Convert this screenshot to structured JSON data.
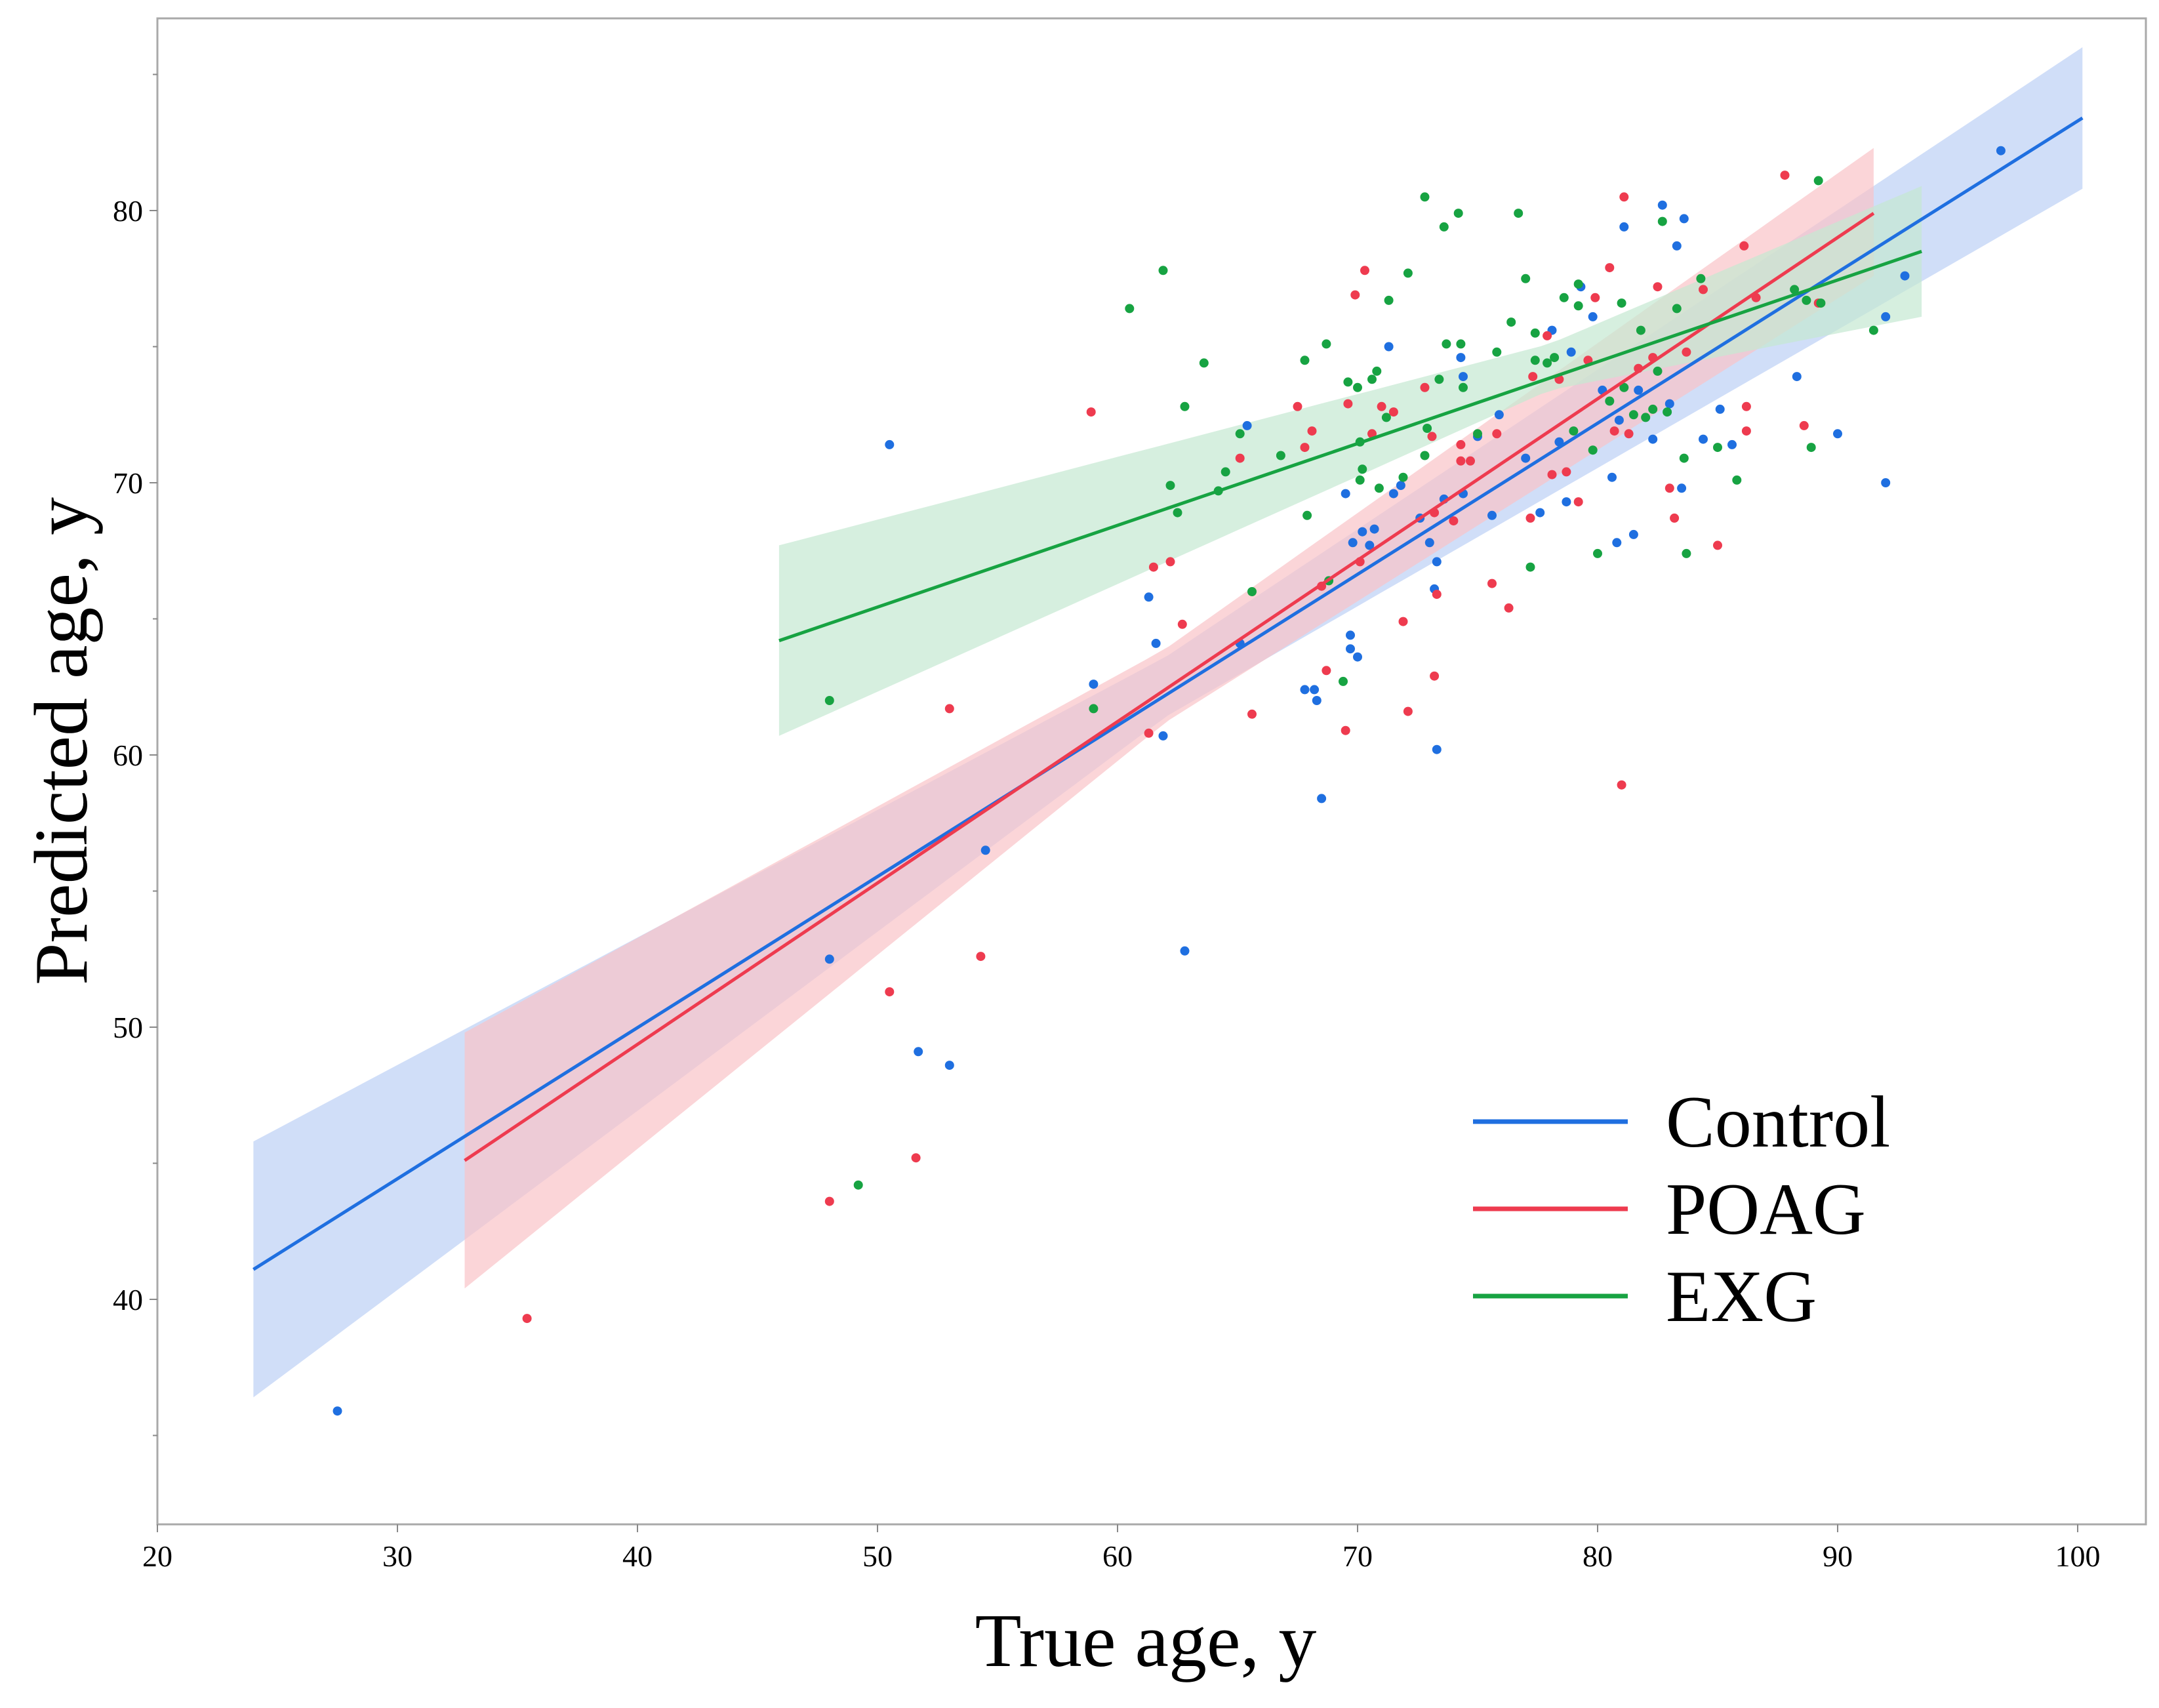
{
  "chart_data": {
    "type": "scatter",
    "xlabel": "True age, y",
    "ylabel": "Predicted age, y",
    "xlim": [
      20,
      102
    ],
    "ylim": [
      32,
      88
    ],
    "xticks": [
      20,
      30,
      40,
      50,
      60,
      70,
      80,
      90,
      100
    ],
    "yticks": [
      40,
      50,
      60,
      70,
      80
    ],
    "yminor": [
      35,
      45,
      55,
      65,
      75,
      85
    ],
    "legend_position": "bottom-right",
    "series": [
      {
        "name": "Control",
        "color": "#1f6fe0",
        "band_color": "#bcd0f5",
        "fit": {
          "x": [
            24,
            100.2
          ],
          "y": [
            41.1,
            83.4
          ]
        },
        "band": {
          "x": [
            24,
            62,
            100.2
          ],
          "lower": [
            36.4,
            61.4,
            80.8
          ],
          "upper": [
            45.8,
            63.6,
            86.0
          ]
        },
        "points": [
          [
            27.5,
            35.9
          ],
          [
            48,
            52.5
          ],
          [
            50.5,
            71.4
          ],
          [
            51.7,
            49.1
          ],
          [
            53,
            48.6
          ],
          [
            54.5,
            56.5
          ],
          [
            59,
            62.6
          ],
          [
            61.3,
            65.8
          ],
          [
            61.6,
            64.1
          ],
          [
            61.9,
            60.7
          ],
          [
            62.8,
            52.8
          ],
          [
            65.1,
            64.1
          ],
          [
            65.4,
            72.1
          ],
          [
            67.8,
            62.4
          ],
          [
            68.2,
            62.4
          ],
          [
            68.3,
            62.0
          ],
          [
            68.5,
            58.4
          ],
          [
            69.5,
            69.6
          ],
          [
            69.7,
            64.4
          ],
          [
            69.7,
            63.9
          ],
          [
            69.8,
            67.8
          ],
          [
            70,
            63.6
          ],
          [
            70.2,
            68.2
          ],
          [
            70.5,
            67.7
          ],
          [
            70.7,
            68.3
          ],
          [
            71.3,
            75.0
          ],
          [
            71.5,
            69.6
          ],
          [
            71.8,
            69.9
          ],
          [
            72.6,
            68.7
          ],
          [
            73,
            67.8
          ],
          [
            73.2,
            66.1
          ],
          [
            73.3,
            67.1
          ],
          [
            73.3,
            60.2
          ],
          [
            73.6,
            69.4
          ],
          [
            74.3,
            74.6
          ],
          [
            74.4,
            73.9
          ],
          [
            74.4,
            69.6
          ],
          [
            75,
            71.7
          ],
          [
            75.6,
            68.8
          ],
          [
            75.9,
            72.5
          ],
          [
            77,
            70.9
          ],
          [
            77.6,
            68.9
          ],
          [
            78.1,
            75.6
          ],
          [
            78.4,
            71.5
          ],
          [
            78.7,
            69.3
          ],
          [
            78.9,
            74.8
          ],
          [
            79.3,
            77.2
          ],
          [
            79.8,
            76.1
          ],
          [
            80.2,
            73.4
          ],
          [
            80.6,
            70.2
          ],
          [
            80.8,
            67.8
          ],
          [
            80.9,
            72.3
          ],
          [
            81.1,
            79.4
          ],
          [
            81.5,
            68.1
          ],
          [
            81.7,
            73.4
          ],
          [
            82.3,
            71.6
          ],
          [
            82.7,
            80.2
          ],
          [
            83,
            72.9
          ],
          [
            83.3,
            78.7
          ],
          [
            83.5,
            69.8
          ],
          [
            83.6,
            79.7
          ],
          [
            84.4,
            71.6
          ],
          [
            85.1,
            72.7
          ],
          [
            85.6,
            71.4
          ],
          [
            88.3,
            73.9
          ],
          [
            90,
            71.8
          ],
          [
            92,
            70.0
          ],
          [
            92,
            76.1
          ],
          [
            92.8,
            77.6
          ],
          [
            96.8,
            82.2
          ]
        ]
      },
      {
        "name": "POAG",
        "color": "#ee3b4f",
        "band_color": "#f9c3c8",
        "fit": {
          "x": [
            32.8,
            91.5
          ],
          "y": [
            45.1,
            79.9
          ]
        },
        "band": {
          "x": [
            32.8,
            62,
            91.5
          ],
          "lower": [
            40.4,
            61.2,
            77.6
          ],
          "upper": [
            49.8,
            63.9,
            82.3
          ]
        },
        "points": [
          [
            35.4,
            39.3
          ],
          [
            48,
            43.6
          ],
          [
            50.5,
            51.3
          ],
          [
            51.6,
            45.2
          ],
          [
            53,
            61.7
          ],
          [
            54.3,
            52.6
          ],
          [
            58.9,
            72.6
          ],
          [
            61.3,
            60.8
          ],
          [
            61.5,
            66.9
          ],
          [
            62.2,
            67.1
          ],
          [
            62.7,
            64.8
          ],
          [
            65.1,
            70.9
          ],
          [
            65.6,
            61.5
          ],
          [
            67.5,
            72.8
          ],
          [
            67.8,
            71.3
          ],
          [
            68.1,
            71.9
          ],
          [
            68.5,
            66.2
          ],
          [
            68.7,
            63.1
          ],
          [
            69.5,
            60.9
          ],
          [
            69.6,
            72.9
          ],
          [
            69.9,
            76.9
          ],
          [
            70.1,
            67.1
          ],
          [
            70.3,
            77.8
          ],
          [
            70.6,
            71.8
          ],
          [
            71,
            72.8
          ],
          [
            71.5,
            72.6
          ],
          [
            71.9,
            64.9
          ],
          [
            72.1,
            61.6
          ],
          [
            72.8,
            73.5
          ],
          [
            73.1,
            71.7
          ],
          [
            73.2,
            68.9
          ],
          [
            73.2,
            62.9
          ],
          [
            73.3,
            65.9
          ],
          [
            74,
            68.6
          ],
          [
            74.3,
            70.8
          ],
          [
            74.3,
            71.4
          ],
          [
            74.7,
            70.8
          ],
          [
            75.6,
            66.3
          ],
          [
            75.8,
            71.8
          ],
          [
            76.3,
            65.4
          ],
          [
            77.2,
            68.7
          ],
          [
            77.3,
            73.9
          ],
          [
            77.9,
            75.4
          ],
          [
            78.1,
            70.3
          ],
          [
            78.4,
            73.8
          ],
          [
            78.7,
            70.4
          ],
          [
            79.2,
            69.3
          ],
          [
            79.6,
            74.5
          ],
          [
            79.9,
            76.8
          ],
          [
            80.5,
            77.9
          ],
          [
            80.7,
            71.9
          ],
          [
            81,
            58.9
          ],
          [
            81.1,
            80.5
          ],
          [
            81.3,
            71.8
          ],
          [
            81.7,
            74.2
          ],
          [
            82.3,
            74.6
          ],
          [
            82.5,
            77.2
          ],
          [
            83,
            69.8
          ],
          [
            83.2,
            68.7
          ],
          [
            83.7,
            74.8
          ],
          [
            84.4,
            77.1
          ],
          [
            85,
            67.7
          ],
          [
            86.1,
            78.7
          ],
          [
            86.2,
            71.9
          ],
          [
            86.2,
            72.8
          ],
          [
            86.6,
            76.8
          ],
          [
            87.8,
            81.3
          ],
          [
            88.6,
            72.1
          ],
          [
            89.2,
            76.6
          ]
        ]
      },
      {
        "name": "EXG",
        "color": "#17a342",
        "band_color": "#c5e8d2",
        "fit": {
          "x": [
            45.9,
            93.5
          ],
          "y": [
            64.2,
            78.5
          ]
        },
        "band": {
          "x": [
            45.9,
            78,
            93.5
          ],
          "lower": [
            60.7,
            73.4,
            76.1
          ],
          "upper": [
            67.7,
            75.1,
            80.9
          ]
        },
        "points": [
          [
            48,
            62.0
          ],
          [
            49.2,
            44.2
          ],
          [
            59,
            61.7
          ],
          [
            60.5,
            76.4
          ],
          [
            61.9,
            77.8
          ],
          [
            62.2,
            69.9
          ],
          [
            62.5,
            68.9
          ],
          [
            62.8,
            72.8
          ],
          [
            63.6,
            74.4
          ],
          [
            64.2,
            69.7
          ],
          [
            64.5,
            70.4
          ],
          [
            65.1,
            71.8
          ],
          [
            65.6,
            66.0
          ],
          [
            66.8,
            71.0
          ],
          [
            67.8,
            74.5
          ],
          [
            67.9,
            68.8
          ],
          [
            68.7,
            75.1
          ],
          [
            68.8,
            66.4
          ],
          [
            69.4,
            62.7
          ],
          [
            69.6,
            73.7
          ],
          [
            70,
            73.5
          ],
          [
            70.1,
            71.5
          ],
          [
            70.1,
            70.1
          ],
          [
            70.2,
            70.5
          ],
          [
            70.6,
            73.8
          ],
          [
            70.8,
            74.1
          ],
          [
            70.9,
            69.8
          ],
          [
            71.2,
            72.4
          ],
          [
            71.3,
            76.7
          ],
          [
            71.9,
            70.2
          ],
          [
            72.1,
            77.7
          ],
          [
            72.8,
            80.5
          ],
          [
            72.8,
            71.0
          ],
          [
            72.9,
            72.0
          ],
          [
            73.4,
            73.8
          ],
          [
            73.6,
            79.4
          ],
          [
            73.7,
            75.1
          ],
          [
            74.2,
            79.9
          ],
          [
            74.3,
            75.1
          ],
          [
            74.4,
            73.5
          ],
          [
            75,
            71.8
          ],
          [
            75.8,
            74.8
          ],
          [
            76.4,
            75.9
          ],
          [
            76.7,
            79.9
          ],
          [
            77,
            77.5
          ],
          [
            77.2,
            66.9
          ],
          [
            77.4,
            74.5
          ],
          [
            77.4,
            75.5
          ],
          [
            77.9,
            74.4
          ],
          [
            78.2,
            74.6
          ],
          [
            78.6,
            76.8
          ],
          [
            79,
            71.9
          ],
          [
            79.2,
            77.3
          ],
          [
            79.2,
            76.5
          ],
          [
            79.8,
            71.2
          ],
          [
            80,
            67.4
          ],
          [
            80.5,
            73.0
          ],
          [
            81,
            76.6
          ],
          [
            81.1,
            73.5
          ],
          [
            81.5,
            72.5
          ],
          [
            81.8,
            75.6
          ],
          [
            82,
            72.4
          ],
          [
            82.3,
            72.7
          ],
          [
            82.5,
            74.1
          ],
          [
            82.7,
            79.6
          ],
          [
            82.9,
            72.6
          ],
          [
            83.3,
            76.4
          ],
          [
            83.6,
            70.9
          ],
          [
            83.7,
            67.4
          ],
          [
            84.3,
            77.5
          ],
          [
            85,
            71.3
          ],
          [
            85.8,
            70.1
          ],
          [
            88.2,
            77.1
          ],
          [
            88.7,
            76.7
          ],
          [
            88.9,
            71.3
          ],
          [
            89.2,
            81.1
          ],
          [
            89.3,
            76.6
          ],
          [
            91.5,
            75.6
          ]
        ]
      }
    ]
  }
}
